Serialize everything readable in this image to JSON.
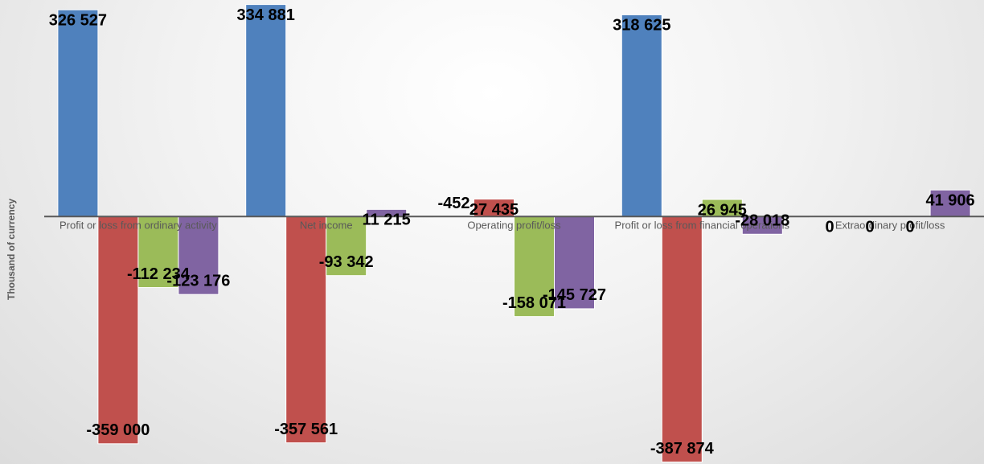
{
  "chart_data": {
    "type": "bar",
    "y_label": "Thousand of currency",
    "categories": [
      "Profit or loss from ordinary activity",
      "Net income",
      "Operating profit/loss",
      "Profit or loss from financial operations",
      "Extraordinary profit/loss"
    ],
    "series": [
      {
        "color": "#4f81bd",
        "values": [
          326527,
          334881,
          -452,
          318625,
          0
        ],
        "value_labels": [
          "326 527",
          "334 881",
          "-452",
          "318 625",
          "0"
        ]
      },
      {
        "color": "#c0504d",
        "values": [
          -359000,
          -357561,
          27435,
          -387874,
          0
        ],
        "value_labels": [
          "-359 000",
          "-357 561",
          "27 435",
          "-387 874",
          "0"
        ]
      },
      {
        "color": "#9bbb59",
        "values": [
          -112234,
          -93342,
          -158071,
          26945,
          0
        ],
        "value_labels": [
          "-112 234",
          "-93 342",
          "-158 071",
          "26 945",
          "0"
        ]
      },
      {
        "color": "#8064a2",
        "values": [
          -123176,
          11215,
          -145727,
          -28018,
          41906
        ],
        "value_labels": [
          "-123 176",
          "11 215",
          "-145 727",
          "-28 018",
          "41 906"
        ]
      }
    ],
    "ylim": [
      -391000,
      342000
    ]
  }
}
